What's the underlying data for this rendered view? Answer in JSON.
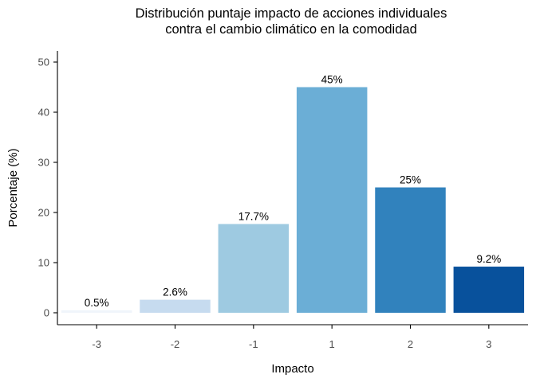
{
  "chart_data": {
    "type": "bar",
    "title_lines": [
      "Distribución puntaje impacto de acciones individuales",
      "contra el cambio climático en la comodidad"
    ],
    "xlabel": "Impacto",
    "ylabel": "Porcentaje (%)",
    "categories": [
      "-3",
      "-2",
      "-1",
      "1",
      "2",
      "3"
    ],
    "values": [
      0.5,
      2.6,
      17.7,
      45,
      25,
      9.2
    ],
    "labels": [
      "0.5%",
      "2.6%",
      "17.7%",
      "45%",
      "25%",
      "9.2%"
    ],
    "colors": [
      "#f0f5fb",
      "#c6dbef",
      "#9ecae1",
      "#6baed6",
      "#3182bd",
      "#08519c"
    ],
    "ylim": [
      0,
      50
    ],
    "yticks": [
      0,
      10,
      20,
      30,
      40,
      50
    ],
    "grid": false,
    "legend": "none"
  }
}
